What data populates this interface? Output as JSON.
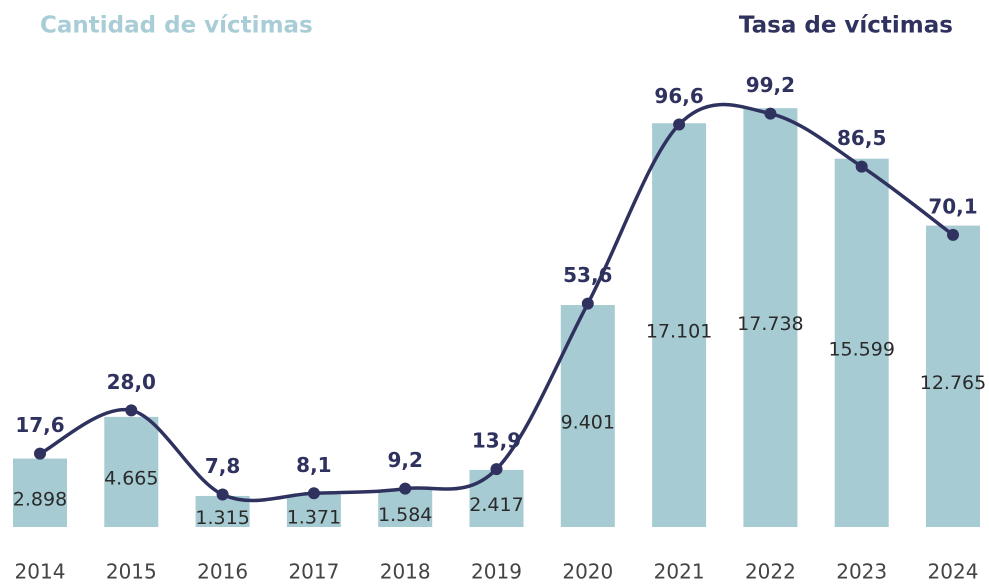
{
  "chart_data": {
    "type": "bar_line",
    "categories": [
      "2014",
      "2015",
      "2016",
      "2017",
      "2018",
      "2019",
      "2020",
      "2021",
      "2022",
      "2023",
      "2024"
    ],
    "series": [
      {
        "name": "Cantidad de víctimas",
        "type": "bar",
        "color": "#a6cbd3",
        "values": [
          2898,
          4665,
          1315,
          1371,
          1584,
          2417,
          9401,
          17101,
          17738,
          15599,
          12765
        ],
        "value_labels": [
          "2.898",
          "4.665",
          "1.315",
          "1.371",
          "1.584",
          "2.417",
          "9.401",
          "17.101",
          "17.738",
          "15.599",
          "12.765"
        ]
      },
      {
        "name": "Tasa de víctimas",
        "type": "line",
        "axis": "y2",
        "color": "#2f325e",
        "values": [
          17.6,
          28.0,
          7.8,
          8.1,
          9.2,
          13.9,
          53.6,
          96.6,
          99.2,
          86.5,
          70.1
        ],
        "value_labels": [
          "17,6",
          "28,0",
          "7,8",
          "8,1",
          "9,2",
          "13,9",
          "53,6",
          "96,6",
          "99,2",
          "86,5",
          "70,1"
        ]
      }
    ],
    "ylim": [
      0,
      18000
    ],
    "y2lim": [
      0,
      102
    ]
  }
}
